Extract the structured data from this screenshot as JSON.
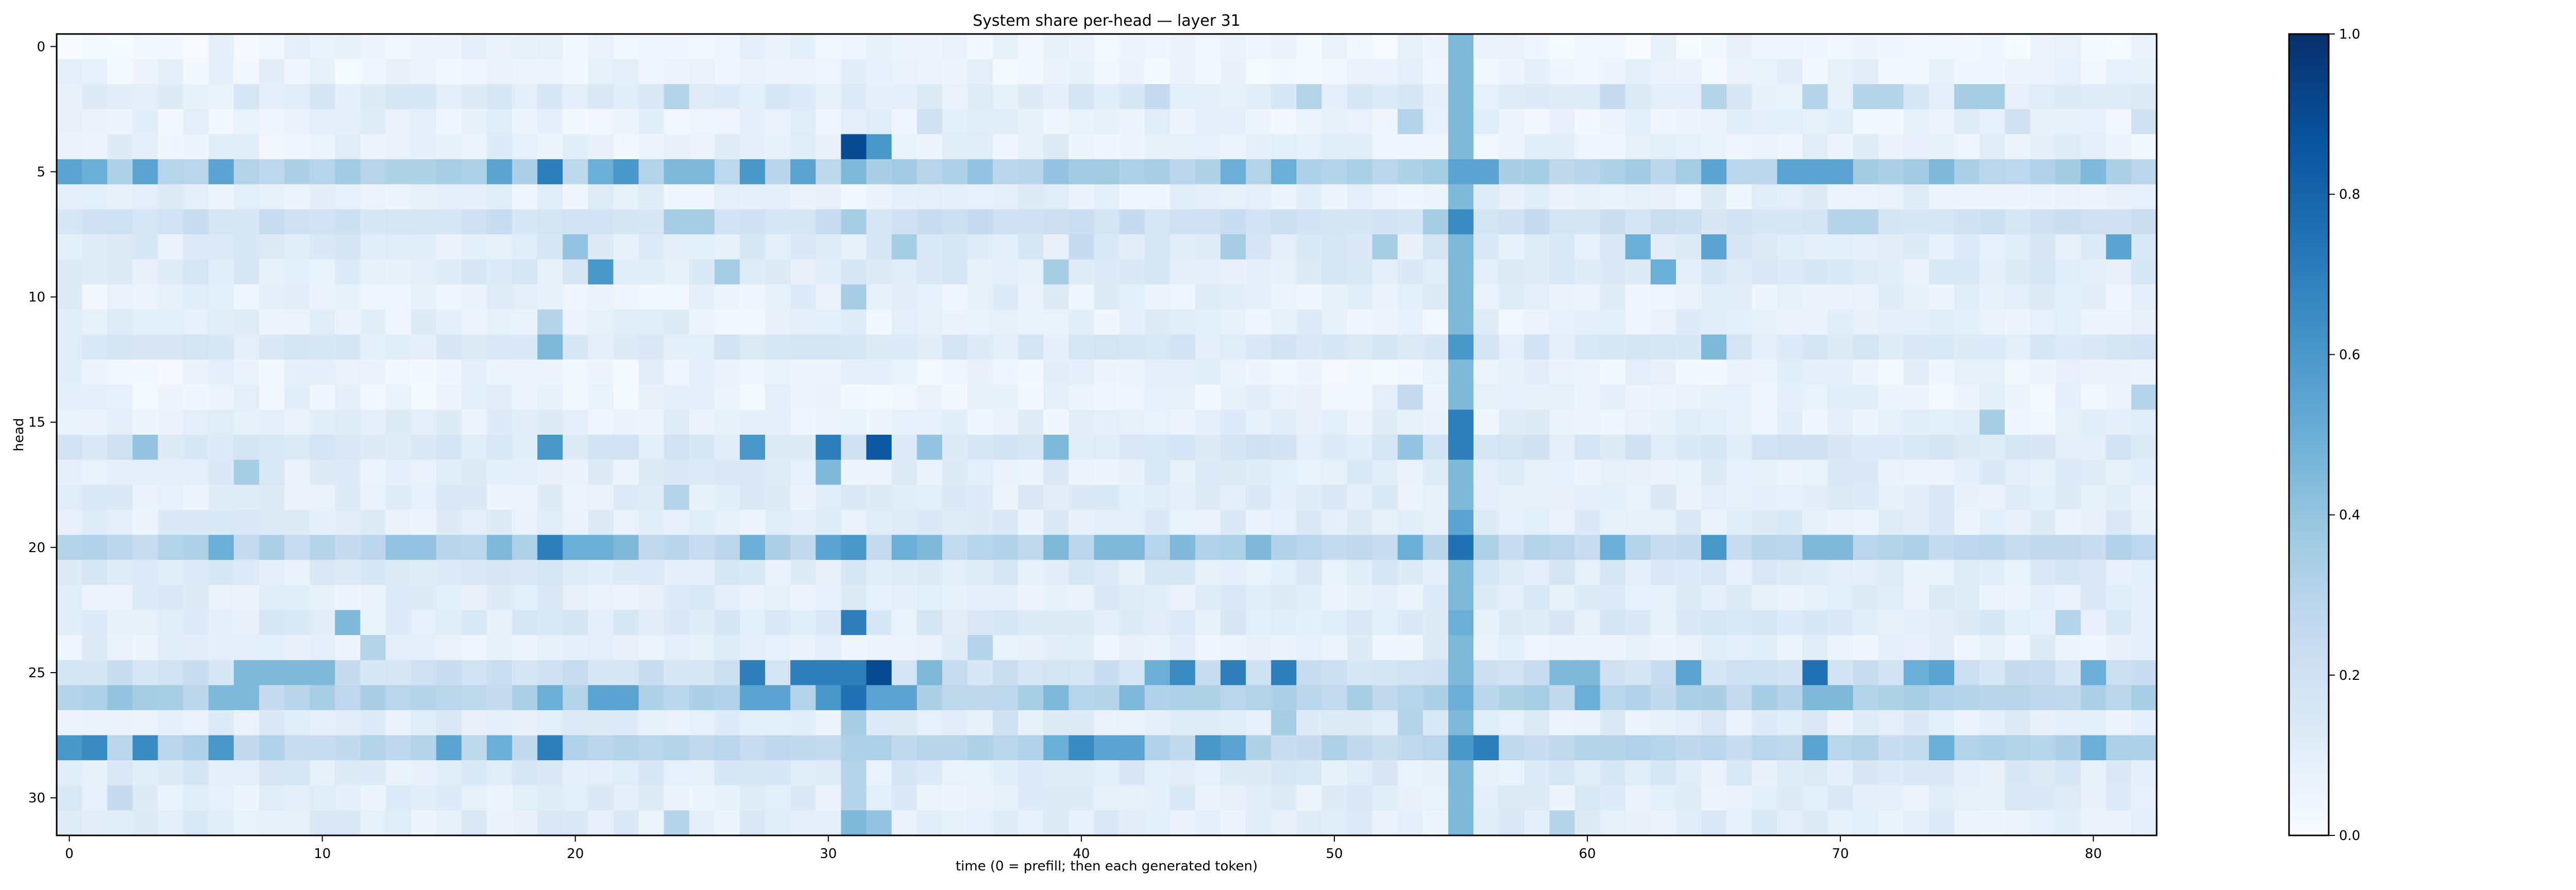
{
  "chart_data": {
    "type": "heatmap",
    "title": "System share per-head — layer 31",
    "xlabel": "time (0 = prefill; then each generated token)",
    "ylabel": "head",
    "x_range": [
      0,
      82
    ],
    "y_range": [
      0,
      31
    ],
    "x_ticks": [
      0,
      10,
      20,
      30,
      40,
      50,
      60,
      70,
      80
    ],
    "y_ticks": [
      0,
      5,
      10,
      15,
      20,
      25,
      30
    ],
    "colorbar": {
      "min": 0.0,
      "max": 1.0,
      "ticks": [
        "0.0",
        "0.2",
        "0.4",
        "0.6",
        "0.8",
        "1.0"
      ],
      "cmap": "Blues"
    },
    "columns_all_rows": [
      {
        "x": 55,
        "value": 0.45
      }
    ],
    "rows": [
      {
        "head": 0,
        "base": 0.05,
        "cells": []
      },
      {
        "head": 1,
        "base": 0.06,
        "cells": []
      },
      {
        "head": 2,
        "base": 0.12,
        "cells": [
          [
            24,
            0.3
          ],
          [
            43,
            0.25
          ],
          [
            49,
            0.3
          ],
          [
            61,
            0.25
          ],
          [
            65,
            0.3
          ],
          [
            69,
            0.3
          ],
          [
            71,
            0.3
          ],
          [
            72,
            0.3
          ],
          [
            75,
            0.35
          ],
          [
            76,
            0.35
          ]
        ]
      },
      {
        "head": 3,
        "base": 0.07,
        "cells": [
          [
            34,
            0.2
          ],
          [
            53,
            0.3
          ],
          [
            77,
            0.2
          ],
          [
            82,
            0.2
          ]
        ]
      },
      {
        "head": 4,
        "base": 0.08,
        "cells": [
          [
            31,
            0.9
          ],
          [
            32,
            0.6
          ]
        ]
      },
      {
        "head": 5,
        "base": 0.32,
        "cells": [
          [
            0,
            0.55
          ],
          [
            1,
            0.5
          ],
          [
            3,
            0.55
          ],
          [
            6,
            0.55
          ],
          [
            17,
            0.55
          ],
          [
            19,
            0.7
          ],
          [
            21,
            0.5
          ],
          [
            22,
            0.6
          ],
          [
            24,
            0.45
          ],
          [
            25,
            0.45
          ],
          [
            27,
            0.6
          ],
          [
            29,
            0.55
          ],
          [
            31,
            0.45
          ],
          [
            36,
            0.4
          ],
          [
            39,
            0.4
          ],
          [
            46,
            0.5
          ],
          [
            48,
            0.5
          ],
          [
            55,
            0.55
          ],
          [
            56,
            0.55
          ],
          [
            65,
            0.55
          ],
          [
            68,
            0.55
          ],
          [
            69,
            0.55
          ],
          [
            70,
            0.55
          ],
          [
            74,
            0.45
          ],
          [
            80,
            0.45
          ]
        ]
      },
      {
        "head": 6,
        "base": 0.08,
        "cells": []
      },
      {
        "head": 7,
        "base": 0.2,
        "cells": [
          [
            24,
            0.35
          ],
          [
            25,
            0.35
          ],
          [
            31,
            0.35
          ],
          [
            54,
            0.35
          ],
          [
            55,
            0.65
          ],
          [
            70,
            0.3
          ],
          [
            71,
            0.3
          ]
        ]
      },
      {
        "head": 8,
        "base": 0.12,
        "cells": [
          [
            20,
            0.4
          ],
          [
            33,
            0.35
          ],
          [
            40,
            0.25
          ],
          [
            46,
            0.35
          ],
          [
            52,
            0.35
          ],
          [
            62,
            0.5
          ],
          [
            65,
            0.55
          ],
          [
            81,
            0.55
          ]
        ]
      },
      {
        "head": 9,
        "base": 0.12,
        "cells": [
          [
            21,
            0.6
          ],
          [
            26,
            0.35
          ],
          [
            39,
            0.35
          ],
          [
            63,
            0.5
          ]
        ]
      },
      {
        "head": 10,
        "base": 0.08,
        "cells": [
          [
            31,
            0.35
          ]
        ]
      },
      {
        "head": 11,
        "base": 0.08,
        "cells": [
          [
            19,
            0.3
          ]
        ]
      },
      {
        "head": 12,
        "base": 0.14,
        "cells": [
          [
            19,
            0.45
          ],
          [
            55,
            0.6
          ],
          [
            65,
            0.45
          ]
        ]
      },
      {
        "head": 13,
        "base": 0.06,
        "cells": []
      },
      {
        "head": 14,
        "base": 0.06,
        "cells": [
          [
            53,
            0.25
          ],
          [
            82,
            0.3
          ]
        ]
      },
      {
        "head": 15,
        "base": 0.08,
        "cells": [
          [
            55,
            0.7
          ],
          [
            76,
            0.35
          ]
        ]
      },
      {
        "head": 16,
        "base": 0.15,
        "cells": [
          [
            3,
            0.4
          ],
          [
            19,
            0.6
          ],
          [
            27,
            0.6
          ],
          [
            30,
            0.7
          ],
          [
            32,
            0.85
          ],
          [
            34,
            0.4
          ],
          [
            39,
            0.45
          ],
          [
            53,
            0.4
          ],
          [
            55,
            0.7
          ]
        ]
      },
      {
        "head": 17,
        "base": 0.1,
        "cells": [
          [
            7,
            0.35
          ],
          [
            30,
            0.45
          ]
        ]
      },
      {
        "head": 18,
        "base": 0.1,
        "cells": [
          [
            24,
            0.3
          ],
          [
            55,
            0.45
          ]
        ]
      },
      {
        "head": 19,
        "base": 0.1,
        "cells": [
          [
            55,
            0.55
          ]
        ]
      },
      {
        "head": 20,
        "base": 0.28,
        "cells": [
          [
            6,
            0.5
          ],
          [
            13,
            0.4
          ],
          [
            14,
            0.4
          ],
          [
            17,
            0.45
          ],
          [
            19,
            0.7
          ],
          [
            20,
            0.5
          ],
          [
            21,
            0.5
          ],
          [
            22,
            0.45
          ],
          [
            27,
            0.5
          ],
          [
            30,
            0.55
          ],
          [
            31,
            0.6
          ],
          [
            33,
            0.5
          ],
          [
            34,
            0.45
          ],
          [
            39,
            0.45
          ],
          [
            41,
            0.45
          ],
          [
            42,
            0.45
          ],
          [
            44,
            0.45
          ],
          [
            47,
            0.45
          ],
          [
            53,
            0.5
          ],
          [
            55,
            0.75
          ],
          [
            61,
            0.5
          ],
          [
            65,
            0.6
          ],
          [
            69,
            0.45
          ],
          [
            70,
            0.45
          ]
        ]
      },
      {
        "head": 21,
        "base": 0.12,
        "cells": [
          [
            55,
            0.45
          ]
        ]
      },
      {
        "head": 22,
        "base": 0.1,
        "cells": []
      },
      {
        "head": 23,
        "base": 0.12,
        "cells": [
          [
            11,
            0.45
          ],
          [
            31,
            0.7
          ],
          [
            55,
            0.5
          ],
          [
            79,
            0.3
          ]
        ]
      },
      {
        "head": 24,
        "base": 0.08,
        "cells": [
          [
            12,
            0.3
          ],
          [
            36,
            0.3
          ]
        ]
      },
      {
        "head": 25,
        "base": 0.2,
        "cells": [
          [
            7,
            0.45
          ],
          [
            8,
            0.45
          ],
          [
            9,
            0.45
          ],
          [
            10,
            0.45
          ],
          [
            27,
            0.7
          ],
          [
            29,
            0.7
          ],
          [
            30,
            0.7
          ],
          [
            31,
            0.7
          ],
          [
            32,
            0.9
          ],
          [
            34,
            0.45
          ],
          [
            43,
            0.5
          ],
          [
            44,
            0.65
          ],
          [
            46,
            0.7
          ],
          [
            48,
            0.7
          ],
          [
            59,
            0.45
          ],
          [
            60,
            0.45
          ],
          [
            64,
            0.55
          ],
          [
            69,
            0.75
          ],
          [
            73,
            0.5
          ],
          [
            74,
            0.55
          ],
          [
            80,
            0.5
          ]
        ]
      },
      {
        "head": 26,
        "base": 0.3,
        "cells": [
          [
            2,
            0.4
          ],
          [
            6,
            0.45
          ],
          [
            7,
            0.45
          ],
          [
            19,
            0.5
          ],
          [
            21,
            0.55
          ],
          [
            22,
            0.55
          ],
          [
            27,
            0.55
          ],
          [
            28,
            0.55
          ],
          [
            30,
            0.6
          ],
          [
            31,
            0.75
          ],
          [
            32,
            0.55
          ],
          [
            33,
            0.55
          ],
          [
            39,
            0.45
          ],
          [
            42,
            0.45
          ],
          [
            60,
            0.5
          ],
          [
            69,
            0.45
          ],
          [
            70,
            0.45
          ]
        ]
      },
      {
        "head": 27,
        "base": 0.1,
        "cells": [
          [
            31,
            0.35
          ],
          [
            37,
            0.2
          ],
          [
            48,
            0.35
          ],
          [
            53,
            0.3
          ]
        ]
      },
      {
        "head": 28,
        "base": 0.28,
        "cells": [
          [
            0,
            0.6
          ],
          [
            1,
            0.65
          ],
          [
            3,
            0.65
          ],
          [
            6,
            0.6
          ],
          [
            15,
            0.55
          ],
          [
            17,
            0.5
          ],
          [
            19,
            0.7
          ],
          [
            39,
            0.5
          ],
          [
            40,
            0.65
          ],
          [
            41,
            0.55
          ],
          [
            42,
            0.55
          ],
          [
            45,
            0.6
          ],
          [
            46,
            0.55
          ],
          [
            55,
            0.6
          ],
          [
            56,
            0.7
          ],
          [
            69,
            0.55
          ],
          [
            74,
            0.5
          ],
          [
            80,
            0.5
          ]
        ]
      },
      {
        "head": 29,
        "base": 0.12,
        "cells": [
          [
            31,
            0.3
          ],
          [
            55,
            0.45
          ]
        ]
      },
      {
        "head": 30,
        "base": 0.1,
        "cells": [
          [
            2,
            0.25
          ],
          [
            31,
            0.3
          ],
          [
            55,
            0.45
          ]
        ]
      },
      {
        "head": 31,
        "base": 0.1,
        "cells": [
          [
            24,
            0.3
          ],
          [
            31,
            0.45
          ],
          [
            32,
            0.4
          ],
          [
            59,
            0.3
          ]
        ]
      }
    ]
  }
}
